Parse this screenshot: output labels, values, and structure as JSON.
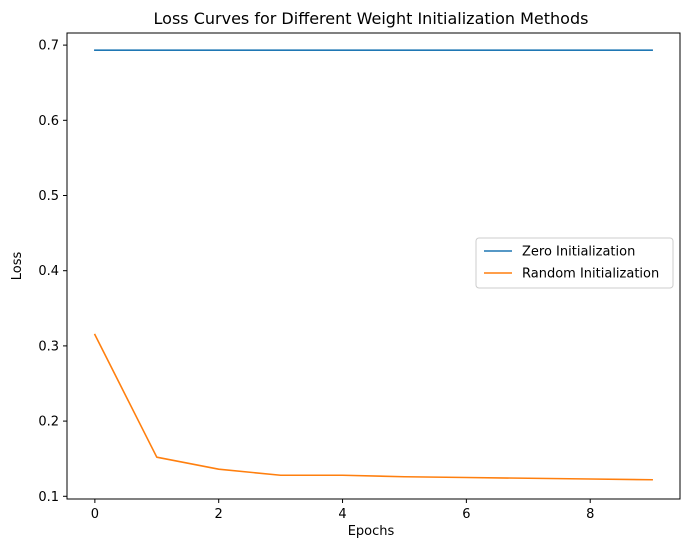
{
  "chart_data": {
    "type": "line",
    "title": "Loss Curves for Different Weight Initialization Methods",
    "xlabel": "Epochs",
    "ylabel": "Loss",
    "x": [
      0,
      1,
      2,
      3,
      4,
      5,
      6,
      7,
      8,
      9
    ],
    "series": [
      {
        "name": "Zero Initialization",
        "color": "#1f77b4",
        "values": [
          0.6932,
          0.6932,
          0.6932,
          0.6932,
          0.6932,
          0.6932,
          0.6932,
          0.6932,
          0.6932,
          0.6932
        ]
      },
      {
        "name": "Random Initialization",
        "color": "#ff7f0e",
        "values": [
          0.315,
          0.152,
          0.136,
          0.128,
          0.128,
          0.126,
          0.125,
          0.124,
          0.123,
          0.122
        ]
      }
    ],
    "xlim": [
      -0.45,
      9.45
    ],
    "ylim": [
      0.0964,
      0.7161
    ],
    "xticks": [
      0,
      2,
      4,
      6,
      8
    ],
    "yticks": [
      0.1,
      0.2,
      0.3,
      0.4,
      0.5,
      0.6,
      0.7
    ],
    "ytick_labels": [
      "0.1",
      "0.2",
      "0.3",
      "0.4",
      "0.5",
      "0.6",
      "0.7"
    ],
    "grid": false,
    "legend_position": "center-right"
  }
}
